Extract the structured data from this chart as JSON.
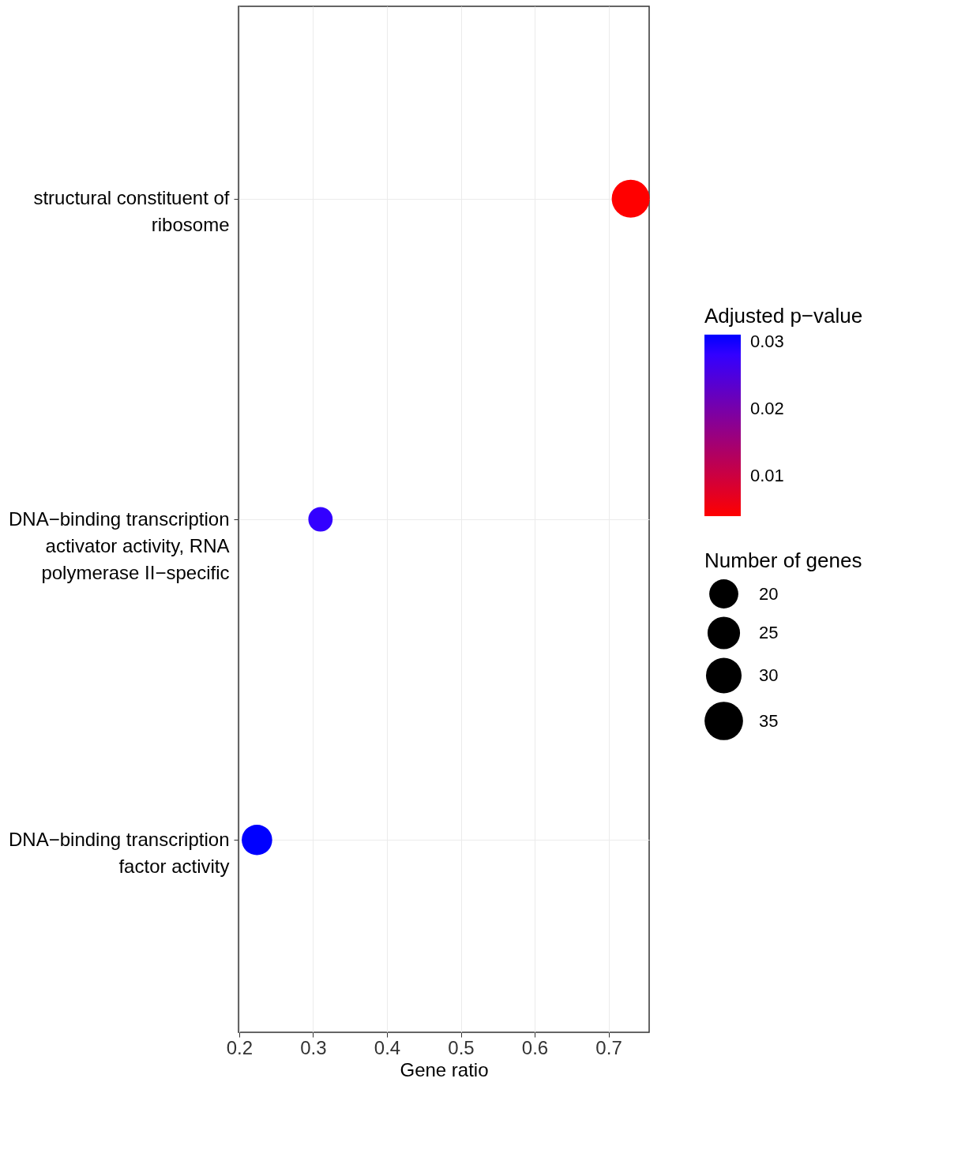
{
  "chart_data": {
    "type": "bubble",
    "categories": [
      "structural constituent of ribosome",
      "DNA−binding transcription activator activity, RNA polymerase II−specific",
      "DNA−binding transcription factor activity"
    ],
    "values": [
      0.73,
      0.31,
      0.224
    ],
    "sizes": [
      34,
      14,
      22
    ],
    "size_legend": [
      20,
      25,
      30,
      35
    ],
    "cvalues": [
      0.004,
      0.028,
      0.031
    ],
    "colors": [
      "#ff0000",
      "#3300ff",
      "#0000ff"
    ],
    "clim": [
      0.004,
      0.031
    ],
    "cticks": [
      0.01,
      0.02,
      0.03
    ],
    "orientation": "horizontal",
    "xlabel": "Gene ratio",
    "legend_title": "Number of genes",
    "clabel": "Adjusted p−value",
    "xlim": [
      0.199,
      0.755
    ],
    "xticks": [
      0.2,
      0.3,
      0.4,
      0.5,
      0.6,
      0.7
    ],
    "grid": true
  }
}
